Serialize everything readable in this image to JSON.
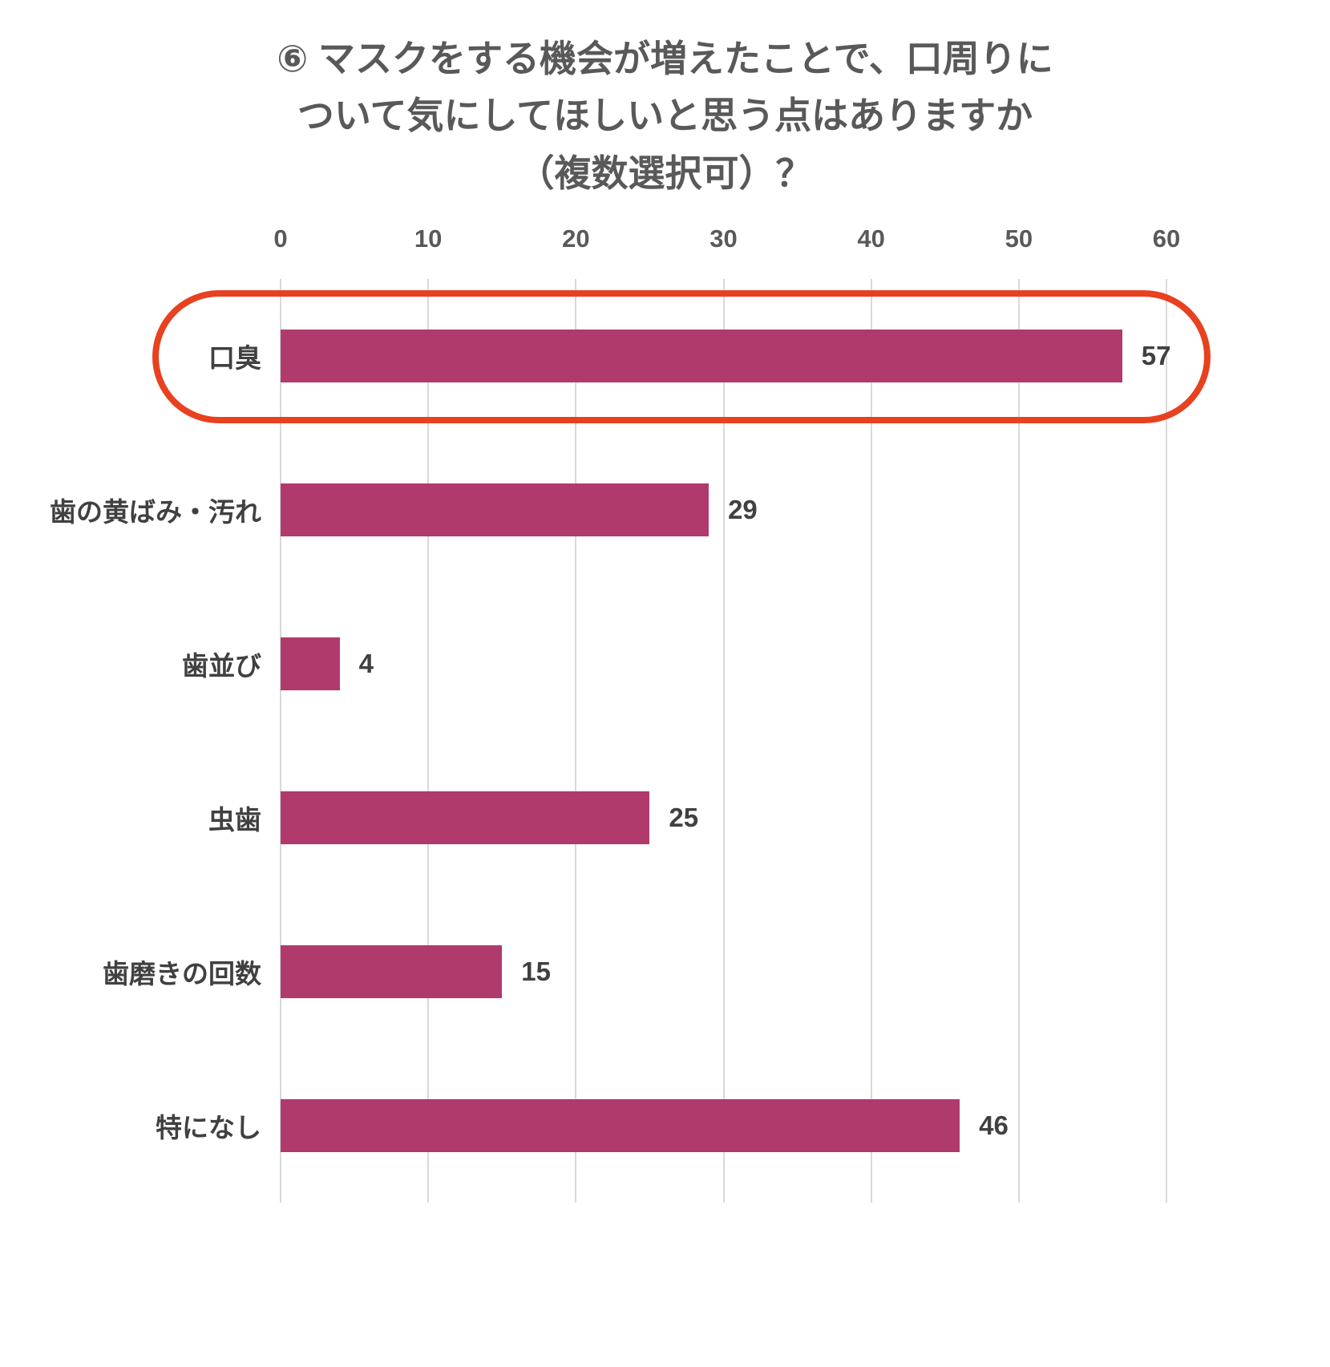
{
  "title": {
    "lines": [
      "⑥ マスクをする機会が増えたことで、口周りに",
      "ついて気にしてほしいと思う点はありますか",
      "（複数選択可）？"
    ]
  },
  "chart_data": {
    "type": "bar",
    "orientation": "horizontal",
    "title": "⑥ マスクをする機会が増えたことで、口周りについて気にしてほしいと思う点はありますか（複数選択可）？",
    "categories": [
      "口臭",
      "歯の黄ばみ・汚れ",
      "歯並び",
      "虫歯",
      "歯磨きの回数",
      "特になし"
    ],
    "values": [
      57,
      29,
      4,
      25,
      15,
      46
    ],
    "xlabel": "",
    "ylabel": "",
    "xlim": [
      0,
      60
    ],
    "xticks": [
      0,
      10,
      20,
      30,
      40,
      50,
      60
    ],
    "grid": true,
    "legend": "none",
    "colors": {
      "bar": "#b13a6c",
      "title_text": "#595959",
      "label_text": "#404040",
      "gridline": "#d9d9d9",
      "highlight_stroke": "#e8411f"
    },
    "annotation": {
      "shape": "rounded-rect-highlight",
      "target_category": "口臭",
      "target_value": 57,
      "color": "#e8411f"
    }
  }
}
